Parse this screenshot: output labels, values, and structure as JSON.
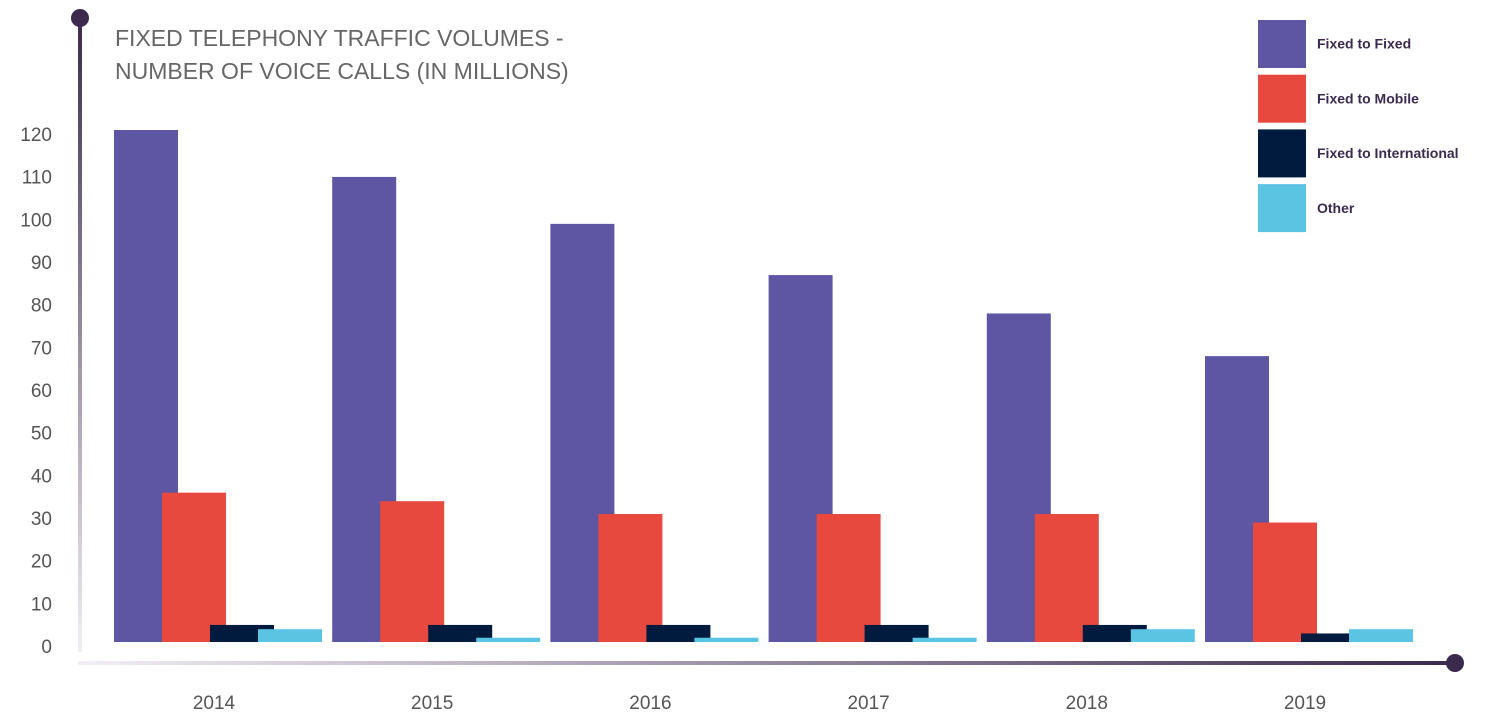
{
  "chart_data": {
    "type": "bar",
    "title_lines": [
      "FIXED TELEPHONY TRAFFIC VOLUMES -",
      "NUMBER OF VOICE CALLS (IN MILLIONS)"
    ],
    "categories": [
      "2014",
      "2015",
      "2016",
      "2017",
      "2018",
      "2019"
    ],
    "series": [
      {
        "name": "Fixed to Fixed",
        "color": "#5e55a3",
        "values": [
          120,
          109,
          98,
          86,
          77,
          67
        ]
      },
      {
        "name": "Fixed to Mobile",
        "color": "#e8493f",
        "values": [
          35,
          33,
          30,
          30,
          30,
          28
        ]
      },
      {
        "name": "Fixed to International",
        "color": "#001b3d",
        "values": [
          4,
          4,
          4,
          4,
          4,
          2
        ]
      },
      {
        "name": "Other",
        "color": "#5bc4e3",
        "values": [
          3,
          1,
          1,
          1,
          3,
          3
        ]
      }
    ],
    "ylim": [
      0,
      120
    ],
    "yticks": [
      0,
      10,
      20,
      30,
      40,
      50,
      60,
      70,
      80,
      90,
      100,
      110,
      120
    ],
    "legend": "upper right"
  }
}
